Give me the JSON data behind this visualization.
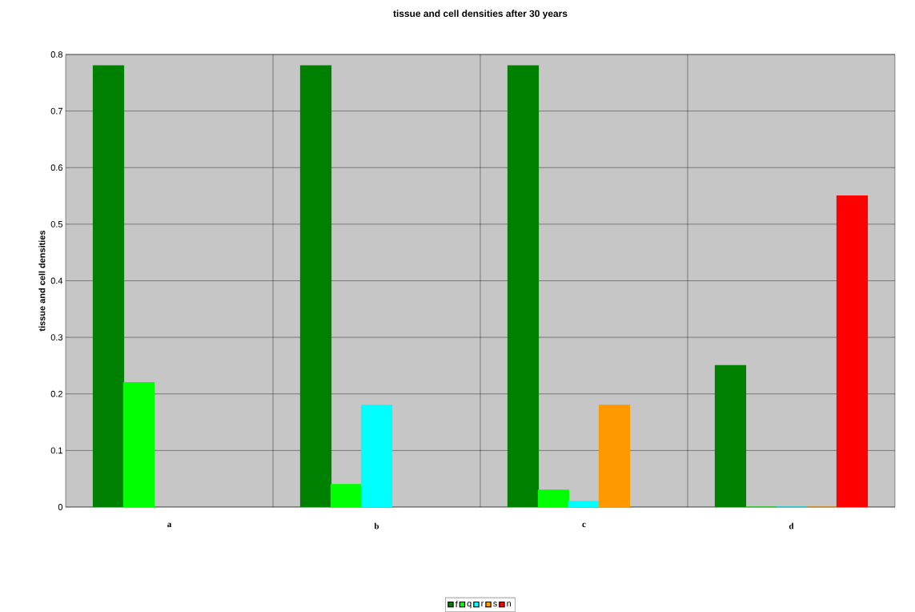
{
  "chart_data": {
    "type": "bar",
    "title": "tissue and cell densities after 30 years",
    "ylabel": "tissue and cell densities",
    "categories": [
      "a",
      "b",
      "c",
      "d"
    ],
    "series": [
      {
        "name": "f",
        "color": "#008000",
        "values": [
          0.78,
          0.78,
          0.78,
          0.25
        ]
      },
      {
        "name": "q",
        "color": "#00ff00",
        "values": [
          0.22,
          0.04,
          0.03,
          0
        ]
      },
      {
        "name": "r",
        "color": "#00ffff",
        "values": [
          null,
          0.18,
          0.01,
          0
        ]
      },
      {
        "name": "s",
        "color": "#ff9900",
        "values": [
          null,
          null,
          0.18,
          0
        ]
      },
      {
        "name": "n",
        "color": "#ff0000",
        "values": [
          null,
          null,
          null,
          0.55
        ]
      }
    ],
    "ylim": [
      0,
      0.8
    ],
    "yticks": [
      0,
      0.1,
      0.2,
      0.3,
      0.4,
      0.5,
      0.6,
      0.7,
      0.8
    ],
    "grid": "y",
    "legend": "bottom"
  }
}
